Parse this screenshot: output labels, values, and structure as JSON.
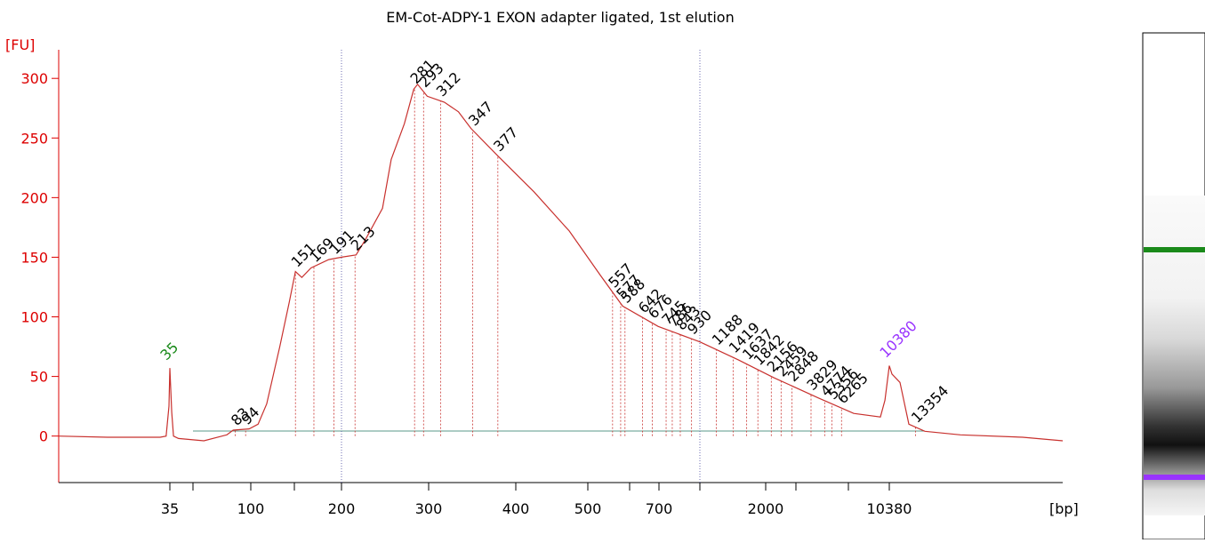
{
  "chart_data": {
    "type": "electropherogram",
    "title": "EM-Cot-ADPY-1 EXON adapter ligated, 1st elution",
    "y_label": "[FU]",
    "x_label": "[bp]",
    "ylim": [
      -39,
      324
    ],
    "yticks": [
      0,
      50,
      100,
      150,
      200,
      250,
      300
    ],
    "xlim": [
      6,
      55000
    ],
    "xticks": [
      35,
      100,
      200,
      300,
      400,
      500,
      700,
      2000,
      10380
    ],
    "xticks_minor": [
      50,
      150,
      600,
      1000,
      3000,
      7000
    ],
    "color": "#c8312e",
    "axis_color": "#dd0000",
    "x": [
      6,
      13,
      30,
      33,
      34.5,
      35,
      36,
      37,
      40,
      57,
      75,
      81,
      98,
      107,
      116,
      131,
      143,
      151,
      157,
      166,
      185,
      200,
      214,
      223,
      242,
      252,
      268,
      280,
      285,
      298,
      316,
      331,
      345,
      377,
      423,
      472,
      528,
      582,
      697,
      1000,
      1496,
      2226,
      4297,
      7370,
      9530,
      9950,
      10380,
      10650,
      11500,
      12530,
      14610,
      20570,
      37420,
      55000
    ],
    "values": [
      0,
      -1,
      -1,
      0,
      25,
      57,
      20,
      0,
      -2,
      -4,
      1,
      5,
      6,
      10,
      27,
      75,
      112,
      138,
      133,
      141,
      148,
      150,
      152,
      164,
      191,
      232,
      262,
      291,
      295,
      285,
      280,
      272,
      258,
      235,
      205,
      172,
      135,
      109,
      92,
      79,
      64,
      49,
      32,
      19,
      16,
      30,
      59,
      52,
      45,
      10,
      4,
      1,
      -1,
      -4
    ],
    "peaks": [
      83,
      94,
      151,
      169,
      191,
      213,
      281,
      293,
      312,
      347,
      377,
      557,
      577,
      588,
      642,
      676,
      745,
      786,
      843,
      930,
      1188,
      1419,
      1637,
      1842,
      2156,
      2459,
      2848,
      3829,
      4774,
      5356,
      6265,
      13354
    ],
    "markers": [
      {
        "bp": 35,
        "color": "#1a8a1a"
      },
      {
        "bp": 10380,
        "color": "#9933ff"
      }
    ],
    "region": [
      200,
      1000
    ],
    "region_color": "#6b6bb0"
  }
}
